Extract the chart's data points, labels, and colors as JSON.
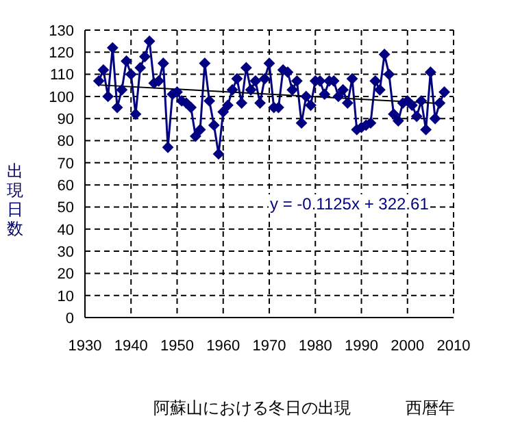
{
  "chart_data": {
    "type": "line",
    "title": "阿蘇山における冬日の出現",
    "xlabel": "西暦年",
    "ylabel": "出現日数",
    "annotations": [
      "y = -0.1125x + 322.61"
    ],
    "x": [
      1933,
      1934,
      1935,
      1936,
      1937,
      1938,
      1939,
      1940,
      1941,
      1942,
      1943,
      1944,
      1945,
      1946,
      1947,
      1948,
      1949,
      1950,
      1951,
      1952,
      1953,
      1954,
      1955,
      1956,
      1957,
      1958,
      1959,
      1960,
      1961,
      1962,
      1963,
      1964,
      1965,
      1966,
      1967,
      1968,
      1969,
      1970,
      1971,
      1972,
      1973,
      1974,
      1975,
      1976,
      1977,
      1978,
      1979,
      1980,
      1981,
      1982,
      1983,
      1984,
      1985,
      1986,
      1987,
      1988,
      1989,
      1990,
      1991,
      1992,
      1993,
      1994,
      1995,
      1996,
      1997,
      1998,
      1999,
      2000,
      2001,
      2002,
      2003,
      2004,
      2005,
      2006,
      2007,
      2008
    ],
    "series": [
      {
        "color": "#000080",
        "marker": "diamond",
        "values": [
          107,
          112,
          100,
          122,
          95,
          103,
          116,
          110,
          92,
          113,
          118,
          125,
          106,
          107,
          115,
          77,
          101,
          102,
          98,
          97,
          95,
          82,
          85,
          115,
          98,
          87,
          74,
          93,
          96,
          103,
          108,
          97,
          113,
          103,
          107,
          97,
          108,
          115,
          95,
          95,
          112,
          111,
          103,
          107,
          88,
          100,
          96,
          107,
          107,
          101,
          107,
          107,
          100,
          103,
          97,
          108,
          85,
          86,
          87,
          88,
          107,
          103,
          119,
          110,
          92,
          89,
          97,
          98,
          96,
          91,
          98,
          85,
          111,
          90,
          97,
          102
        ]
      },
      {
        "type": "line",
        "color": "#000000",
        "marker": "none",
        "x": [
          1933,
          2008
        ],
        "values": [
          105.2,
          96.7
        ]
      }
    ],
    "xlim": [
      1930,
      2010
    ],
    "xticks": [
      1930,
      1940,
      1950,
      1960,
      1970,
      1980,
      1990,
      2000,
      2010
    ],
    "ylim": [
      0,
      130
    ],
    "yticks": [
      0,
      10,
      20,
      30,
      40,
      50,
      60,
      70,
      80,
      90,
      100,
      110,
      120,
      130
    ],
    "grid": true,
    "line_style": "solid"
  }
}
